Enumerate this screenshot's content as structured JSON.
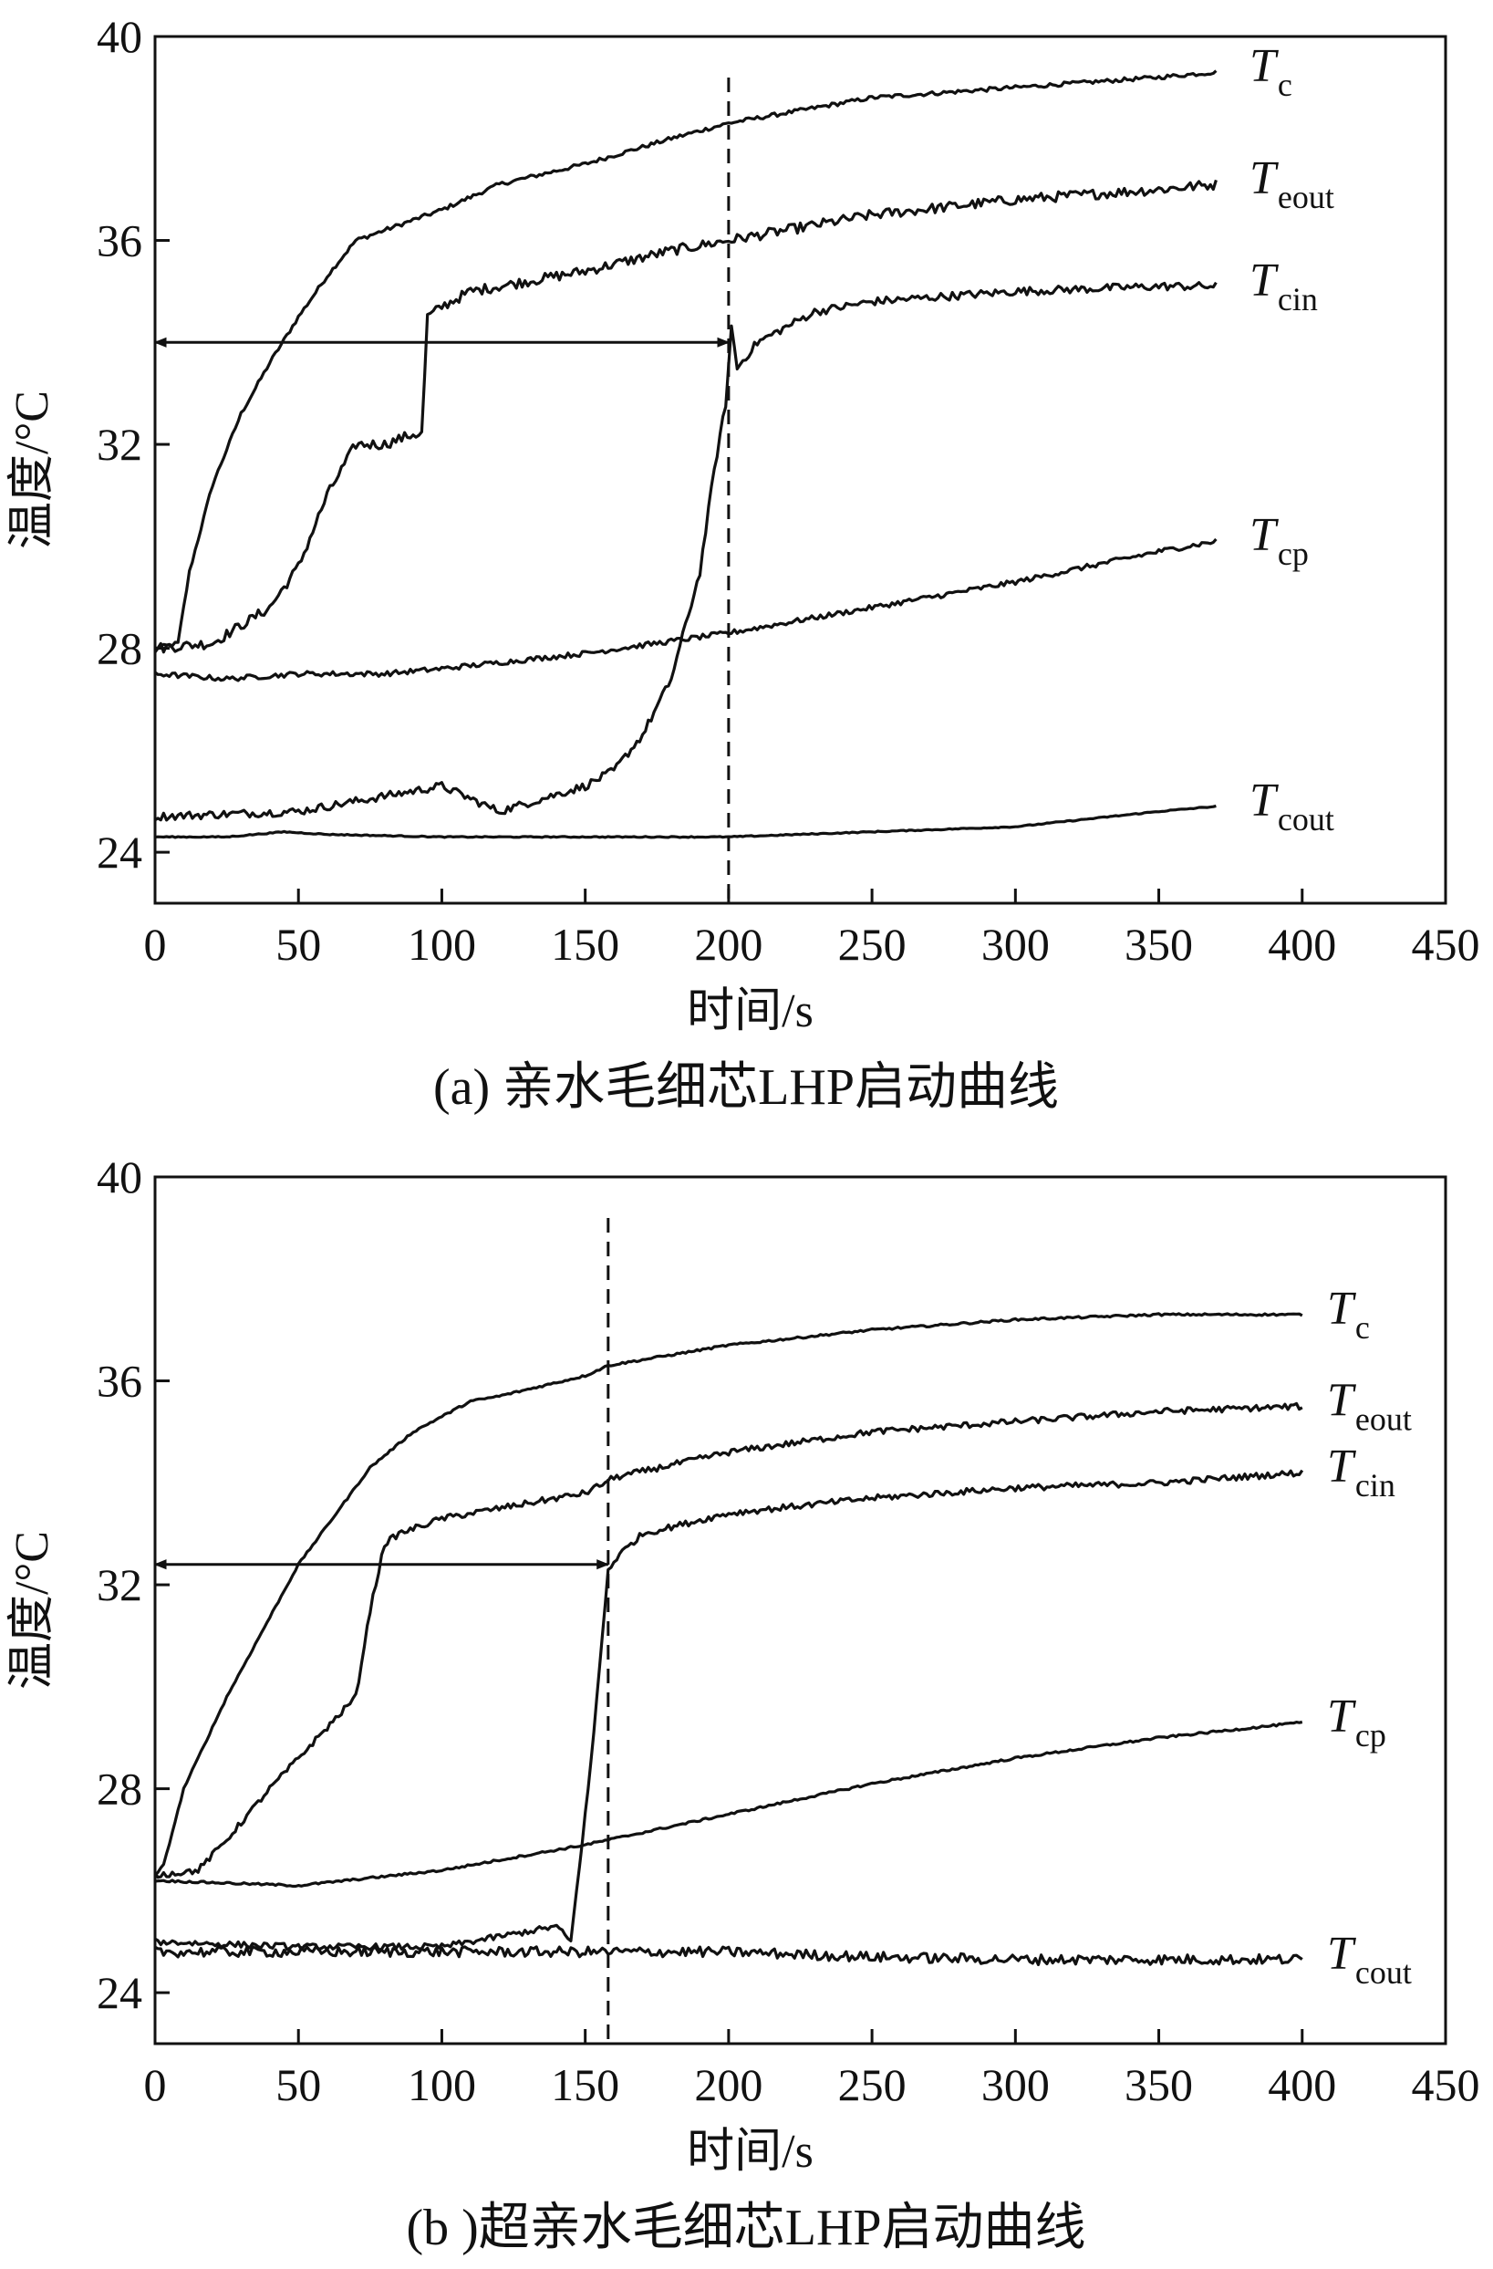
{
  "chart_data": [
    {
      "type": "line",
      "caption": "(a) 亲水毛细芯LHP启动曲线",
      "xlabel": "时间/s",
      "ylabel": "温度/°C",
      "xlim": [
        0,
        450
      ],
      "ylim": [
        23,
        40
      ],
      "xticks": [
        0,
        50,
        100,
        150,
        200,
        250,
        300,
        350,
        400,
        450
      ],
      "yticks": [
        24,
        28,
        32,
        36,
        40
      ],
      "grid": false,
      "vline_x": 200,
      "arrow": {
        "x1": 0,
        "x2": 200,
        "y": 34
      },
      "series": [
        {
          "name": "T",
          "sub": "c",
          "noise": 0.04,
          "x": [
            0,
            8,
            12,
            20,
            30,
            40,
            50,
            60,
            70,
            80,
            100,
            120,
            150,
            180,
            200,
            220,
            250,
            300,
            350,
            370
          ],
          "y": [
            28.0,
            28.1,
            29.5,
            31.2,
            32.6,
            33.6,
            34.5,
            35.3,
            36.0,
            36.2,
            36.6,
            37.1,
            37.5,
            38.0,
            38.3,
            38.5,
            38.8,
            39.0,
            39.2,
            39.3
          ]
        },
        {
          "name": "T",
          "sub": "eout",
          "noise": 0.1,
          "x": [
            0,
            20,
            40,
            50,
            60,
            70,
            80,
            90,
            93,
            95,
            100,
            110,
            130,
            150,
            180,
            200,
            250,
            300,
            350,
            370
          ],
          "y": [
            28.0,
            28.1,
            28.8,
            29.6,
            31.0,
            32.0,
            32.0,
            32.2,
            32.2,
            34.5,
            34.7,
            35.0,
            35.2,
            35.4,
            35.8,
            36.0,
            36.5,
            36.8,
            37.0,
            37.1
          ]
        },
        {
          "name": "T",
          "sub": "cin",
          "noise": 0.08,
          "x": [
            0,
            50,
            100,
            120,
            150,
            160,
            170,
            180,
            190,
            195,
            199,
            201,
            203,
            210,
            230,
            250,
            300,
            350,
            370
          ],
          "y": [
            24.7,
            24.8,
            25.3,
            24.8,
            25.3,
            25.6,
            26.3,
            27.4,
            29.5,
            31.5,
            32.8,
            34.3,
            33.5,
            34.0,
            34.6,
            34.8,
            35.0,
            35.1,
            35.1
          ]
        },
        {
          "name": "T",
          "sub": "cp",
          "noise": 0.05,
          "x": [
            0,
            25,
            50,
            80,
            100,
            150,
            200,
            250,
            300,
            350,
            370
          ],
          "y": [
            27.5,
            27.4,
            27.5,
            27.5,
            27.6,
            27.9,
            28.3,
            28.8,
            29.3,
            29.9,
            30.1
          ]
        },
        {
          "name": "T",
          "sub": "cout",
          "noise": 0.01,
          "x": [
            0,
            25,
            45,
            60,
            100,
            150,
            200,
            250,
            300,
            350,
            370
          ],
          "y": [
            24.3,
            24.3,
            24.4,
            24.35,
            24.3,
            24.3,
            24.3,
            24.4,
            24.5,
            24.8,
            24.9
          ]
        }
      ]
    },
    {
      "type": "line",
      "caption": "(b )超亲水毛细芯LHP启动曲线",
      "xlabel": "时间/s",
      "ylabel": "温度/°C",
      "xlim": [
        0,
        450
      ],
      "ylim": [
        23,
        40
      ],
      "xticks": [
        0,
        50,
        100,
        150,
        200,
        250,
        300,
        350,
        400,
        450
      ],
      "yticks": [
        24,
        28,
        32,
        36,
        40
      ],
      "grid": false,
      "vline_x": 158,
      "arrow": {
        "x1": 0,
        "x2": 158,
        "y": 32.4
      },
      "series": [
        {
          "name": "T",
          "sub": "c",
          "noise": 0.02,
          "x": [
            0,
            3,
            10,
            25,
            50,
            75,
            90,
            100,
            110,
            120,
            150,
            158,
            200,
            250,
            300,
            350,
            400
          ],
          "y": [
            26.3,
            26.5,
            28.0,
            29.8,
            32.4,
            34.3,
            35.0,
            35.3,
            35.6,
            35.7,
            36.1,
            36.3,
            36.7,
            37.0,
            37.2,
            37.3,
            37.3
          ]
        },
        {
          "name": "T",
          "sub": "eout",
          "noise": 0.06,
          "x": [
            0,
            15,
            25,
            40,
            60,
            70,
            75,
            80,
            85,
            90,
            100,
            120,
            150,
            160,
            200,
            250,
            300,
            350,
            400
          ],
          "y": [
            26.3,
            26.4,
            27.0,
            28.0,
            29.2,
            29.8,
            31.5,
            32.8,
            33.0,
            33.1,
            33.3,
            33.5,
            33.8,
            34.1,
            34.6,
            35.0,
            35.2,
            35.4,
            35.5
          ]
        },
        {
          "name": "T",
          "sub": "cin",
          "noise": 0.06,
          "x": [
            0,
            50,
            100,
            140,
            145,
            148,
            152,
            156,
            158,
            162,
            170,
            200,
            250,
            300,
            350,
            400
          ],
          "y": [
            25.0,
            24.9,
            24.9,
            25.3,
            25.0,
            26.5,
            28.5,
            31.0,
            32.3,
            32.6,
            33.0,
            33.4,
            33.7,
            33.9,
            34.0,
            34.2
          ]
        },
        {
          "name": "T",
          "sub": "cp",
          "noise": 0.02,
          "x": [
            0,
            50,
            100,
            150,
            200,
            250,
            300,
            350,
            400
          ],
          "y": [
            26.2,
            26.1,
            26.4,
            26.9,
            27.5,
            28.1,
            28.6,
            29.0,
            29.3
          ]
        },
        {
          "name": "T",
          "sub": "cout",
          "noise": 0.1,
          "x": [
            0,
            50,
            100,
            150,
            200,
            250,
            300,
            350,
            400
          ],
          "y": [
            24.8,
            24.8,
            24.8,
            24.8,
            24.8,
            24.7,
            24.65,
            24.65,
            24.65
          ]
        }
      ]
    }
  ]
}
